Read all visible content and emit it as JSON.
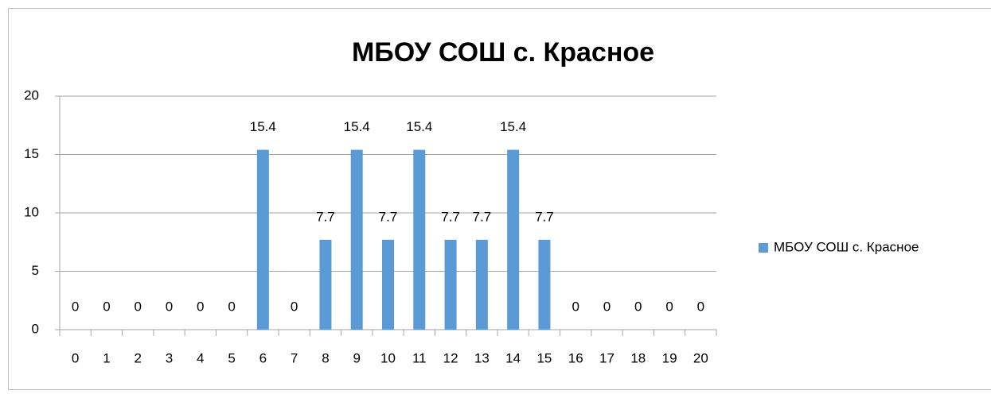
{
  "chart_data": {
    "type": "bar",
    "title": "МБОУ СОШ с. Красное",
    "categories": [
      "0",
      "1",
      "2",
      "3",
      "4",
      "5",
      "6",
      "7",
      "8",
      "9",
      "10",
      "11",
      "12",
      "13",
      "14",
      "15",
      "16",
      "17",
      "18",
      "19",
      "20"
    ],
    "series": [
      {
        "name": "МБОУ СОШ с. Красное",
        "color": "#5b9bd5",
        "values": [
          0,
          0,
          0,
          0,
          0,
          0,
          15.4,
          0,
          7.7,
          15.4,
          7.7,
          15.4,
          7.7,
          7.7,
          15.4,
          7.7,
          0,
          0,
          0,
          0,
          0
        ]
      }
    ],
    "ylim": [
      0,
      20
    ],
    "yticks": [
      0,
      5,
      10,
      15,
      20
    ],
    "grid": true,
    "legend": "right",
    "data_labels": true
  }
}
